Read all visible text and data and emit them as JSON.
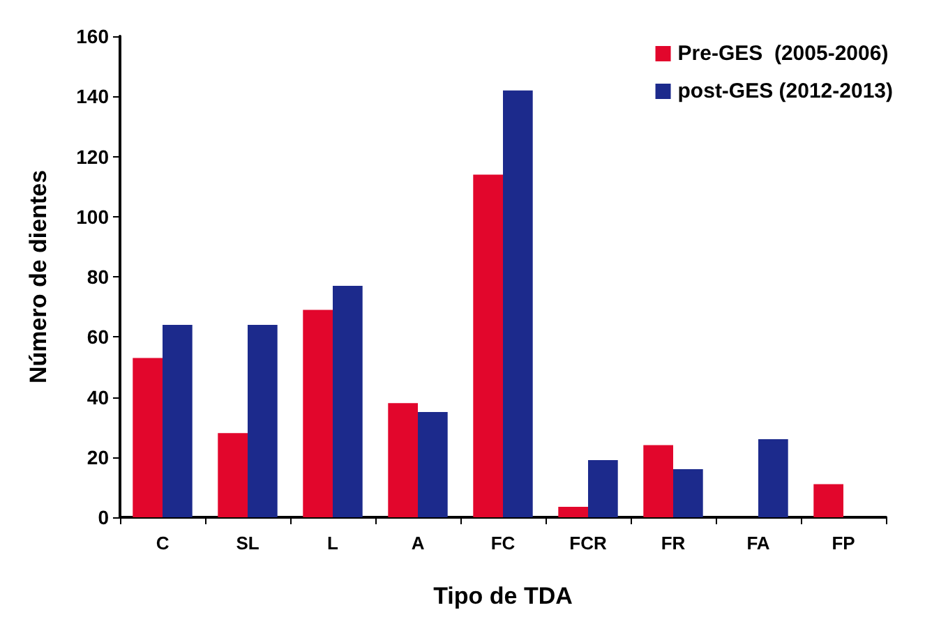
{
  "chart_data": {
    "type": "bar",
    "xlabel": "Tipo de TDA",
    "ylabel": "Número de dientes",
    "categories": [
      "C",
      "SL",
      "L",
      "A",
      "FC",
      "FCR",
      "FR",
      "FA",
      "FP"
    ],
    "series": [
      {
        "name": "Pre-GES  (2005-2006)",
        "color": "#e2062c",
        "values": [
          53,
          28,
          69,
          38,
          114,
          3.5,
          24,
          null,
          11
        ]
      },
      {
        "name": "post-GES (2012-2013)",
        "color": "#1c2a8c",
        "values": [
          64,
          64,
          77,
          35,
          142,
          19,
          16,
          26,
          null
        ]
      }
    ],
    "ylim": [
      0,
      160
    ],
    "yticks": [
      0,
      20,
      40,
      60,
      80,
      100,
      120,
      140,
      160
    ],
    "grid": false,
    "legend": "top right"
  }
}
